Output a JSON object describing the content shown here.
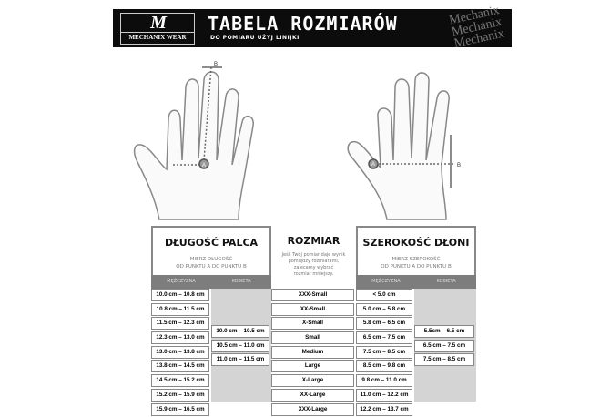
{
  "header": {
    "logo_mark": "M",
    "logo_text": "MECHANIX WEAR",
    "title": "TABELA ROZMIARÓW",
    "subtitle": "DO POMIARU UŻYJ LINIJKI",
    "watermark": "Mechanix"
  },
  "diagram": {
    "point_a": "A",
    "point_b": "B"
  },
  "finger_length": {
    "title": "DŁUGOŚĆ PALCA",
    "desc1": "MIERZ DŁUGOŚĆ",
    "desc2": "OD PUNKTU A DO PUNKTU B",
    "col_men": "MĘŻCZYZNA",
    "col_women": "KOBIETA",
    "men": [
      "10.0 cm – 10.8 cm",
      "10.8 cm – 11.5 cm",
      "11.5 cm – 12.3 cm",
      "12.3 cm – 13.0 cm",
      "13.0 cm – 13.8 cm",
      "13.8 cm – 14.5 cm",
      "14.5 cm – 15.2 cm",
      "15.2 cm – 15.9 cm",
      "15.9 cm – 16.5 cm"
    ],
    "women": [
      "10.0 cm – 10.5 cm",
      "10.5 cm – 11.0 cm",
      "11.0 cm – 11.5 cm"
    ]
  },
  "size": {
    "title": "ROZMIAR",
    "note1": "Jeśli Twój pomiar daje wynik",
    "note2": "pomiędzy rozmiarami,",
    "note3": "zalecamy wybrać",
    "note4": "rozmiar mniejszy.",
    "sizes": [
      "XXX-Small",
      "XX-Small",
      "X-Small",
      "Small",
      "Medium",
      "Large",
      "X-Large",
      "XX-Large",
      "XXX-Large"
    ]
  },
  "palm_width": {
    "title": "SZEROKOŚĆ DŁONI",
    "desc1": "MIERZ SZEROKOŚĆ",
    "desc2": "OD PUNKTU A DO PUNKTU B",
    "col_men": "MĘŻCZYZNA",
    "col_women": "KOBIETA",
    "men": [
      "< 5.0 cm",
      "5.0 cm – 5.8 cm",
      "5.8 cm – 6.5 cm",
      "6.5 cm – 7.5 cm",
      "7.5 cm – 8.5 cm",
      "8.5 cm – 9.8 cm",
      "9.8 cm – 11.0 cm",
      "11.0 cm – 12.2 cm",
      "12.2 cm – 13.7 cm"
    ],
    "women": [
      "5.5cm – 6.5 cm",
      "6.5 cm – 7.5 cm",
      "7.5 cm – 8.5 cm"
    ]
  }
}
